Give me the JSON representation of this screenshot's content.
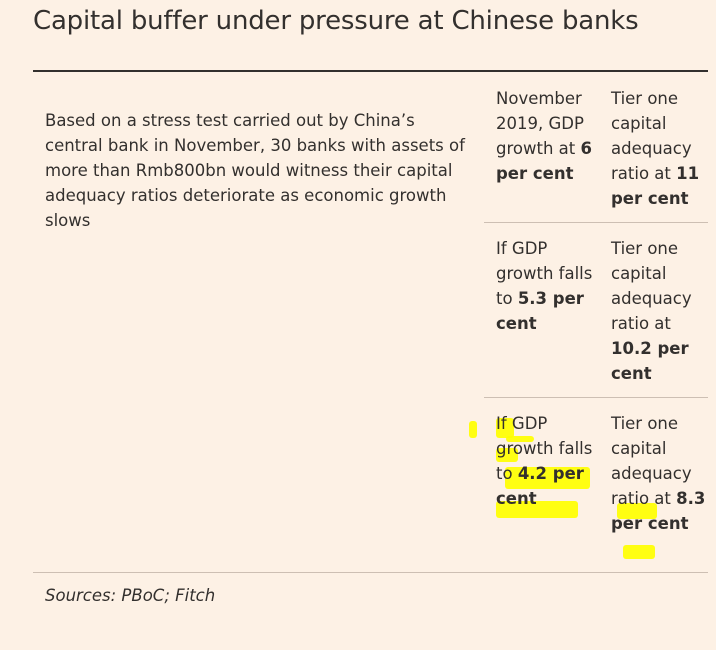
{
  "title": "Capital buffer under pressure at Chinese banks",
  "description": "Based on a stress test carried out by China’s central bank in November, 30 banks with assets of more than Rmb800bn would witness their capital adequacy ratios deteriorate as economic growth slows",
  "rows": [
    {
      "scenario_pre": "November 2019, GDP growth at ",
      "scenario_bold": "6 per cent",
      "ratio_pre": "Tier one capital adequacy ratio at ",
      "ratio_bold": "11 per cent"
    },
    {
      "scenario_pre": "If GDP growth falls to ",
      "scenario_bold": "5.3 per cent",
      "ratio_pre": "Tier one capital adequacy ratio at ",
      "ratio_bold": "10.2 per cent"
    },
    {
      "scenario_pre": "If GDP growth falls to ",
      "scenario_bold": "4.2 per cent",
      "ratio_pre": "Tier one capital adequacy ratio at ",
      "ratio_bold": "8.3 per cent"
    }
  ],
  "source": "Sources: PBoC; Fitch",
  "colors": {
    "background": "#fdf1e5",
    "text": "#33302e",
    "highlight": "#ffff00"
  }
}
